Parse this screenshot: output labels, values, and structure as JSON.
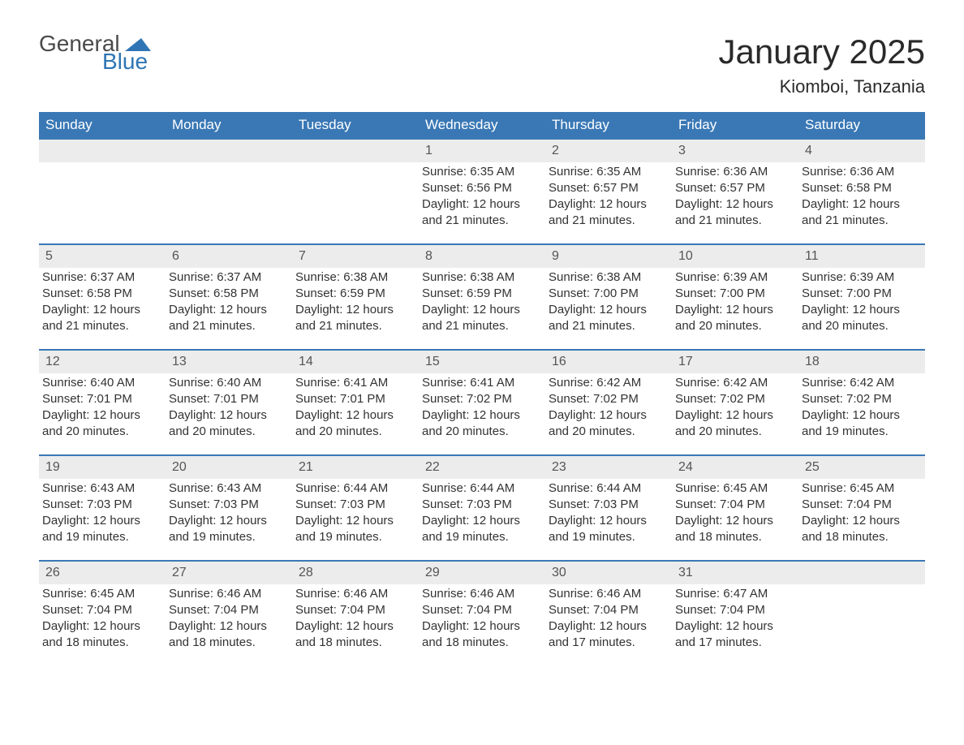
{
  "logo": {
    "text_general": "General",
    "text_blue": "Blue",
    "flag_color": "#2f75b5"
  },
  "title": "January 2025",
  "location": "Kiomboi, Tanzania",
  "colors": {
    "header_bg": "#3a78b5",
    "header_text": "#ffffff",
    "divider": "#3a78b5",
    "daynum_bg": "#ececec",
    "body_text": "#333333",
    "background": "#ffffff"
  },
  "typography": {
    "title_fontsize": 42,
    "location_fontsize": 22,
    "weekday_fontsize": 17,
    "body_fontsize": 15,
    "font_family": "Arial"
  },
  "weekdays": [
    "Sunday",
    "Monday",
    "Tuesday",
    "Wednesday",
    "Thursday",
    "Friday",
    "Saturday"
  ],
  "weeks": [
    [
      {
        "day": "",
        "sunrise": "",
        "sunset": "",
        "daylight": ""
      },
      {
        "day": "",
        "sunrise": "",
        "sunset": "",
        "daylight": ""
      },
      {
        "day": "",
        "sunrise": "",
        "sunset": "",
        "daylight": ""
      },
      {
        "day": "1",
        "sunrise": "Sunrise: 6:35 AM",
        "sunset": "Sunset: 6:56 PM",
        "daylight": "Daylight: 12 hours and 21 minutes."
      },
      {
        "day": "2",
        "sunrise": "Sunrise: 6:35 AM",
        "sunset": "Sunset: 6:57 PM",
        "daylight": "Daylight: 12 hours and 21 minutes."
      },
      {
        "day": "3",
        "sunrise": "Sunrise: 6:36 AM",
        "sunset": "Sunset: 6:57 PM",
        "daylight": "Daylight: 12 hours and 21 minutes."
      },
      {
        "day": "4",
        "sunrise": "Sunrise: 6:36 AM",
        "sunset": "Sunset: 6:58 PM",
        "daylight": "Daylight: 12 hours and 21 minutes."
      }
    ],
    [
      {
        "day": "5",
        "sunrise": "Sunrise: 6:37 AM",
        "sunset": "Sunset: 6:58 PM",
        "daylight": "Daylight: 12 hours and 21 minutes."
      },
      {
        "day": "6",
        "sunrise": "Sunrise: 6:37 AM",
        "sunset": "Sunset: 6:58 PM",
        "daylight": "Daylight: 12 hours and 21 minutes."
      },
      {
        "day": "7",
        "sunrise": "Sunrise: 6:38 AM",
        "sunset": "Sunset: 6:59 PM",
        "daylight": "Daylight: 12 hours and 21 minutes."
      },
      {
        "day": "8",
        "sunrise": "Sunrise: 6:38 AM",
        "sunset": "Sunset: 6:59 PM",
        "daylight": "Daylight: 12 hours and 21 minutes."
      },
      {
        "day": "9",
        "sunrise": "Sunrise: 6:38 AM",
        "sunset": "Sunset: 7:00 PM",
        "daylight": "Daylight: 12 hours and 21 minutes."
      },
      {
        "day": "10",
        "sunrise": "Sunrise: 6:39 AM",
        "sunset": "Sunset: 7:00 PM",
        "daylight": "Daylight: 12 hours and 20 minutes."
      },
      {
        "day": "11",
        "sunrise": "Sunrise: 6:39 AM",
        "sunset": "Sunset: 7:00 PM",
        "daylight": "Daylight: 12 hours and 20 minutes."
      }
    ],
    [
      {
        "day": "12",
        "sunrise": "Sunrise: 6:40 AM",
        "sunset": "Sunset: 7:01 PM",
        "daylight": "Daylight: 12 hours and 20 minutes."
      },
      {
        "day": "13",
        "sunrise": "Sunrise: 6:40 AM",
        "sunset": "Sunset: 7:01 PM",
        "daylight": "Daylight: 12 hours and 20 minutes."
      },
      {
        "day": "14",
        "sunrise": "Sunrise: 6:41 AM",
        "sunset": "Sunset: 7:01 PM",
        "daylight": "Daylight: 12 hours and 20 minutes."
      },
      {
        "day": "15",
        "sunrise": "Sunrise: 6:41 AM",
        "sunset": "Sunset: 7:02 PM",
        "daylight": "Daylight: 12 hours and 20 minutes."
      },
      {
        "day": "16",
        "sunrise": "Sunrise: 6:42 AM",
        "sunset": "Sunset: 7:02 PM",
        "daylight": "Daylight: 12 hours and 20 minutes."
      },
      {
        "day": "17",
        "sunrise": "Sunrise: 6:42 AM",
        "sunset": "Sunset: 7:02 PM",
        "daylight": "Daylight: 12 hours and 20 minutes."
      },
      {
        "day": "18",
        "sunrise": "Sunrise: 6:42 AM",
        "sunset": "Sunset: 7:02 PM",
        "daylight": "Daylight: 12 hours and 19 minutes."
      }
    ],
    [
      {
        "day": "19",
        "sunrise": "Sunrise: 6:43 AM",
        "sunset": "Sunset: 7:03 PM",
        "daylight": "Daylight: 12 hours and 19 minutes."
      },
      {
        "day": "20",
        "sunrise": "Sunrise: 6:43 AM",
        "sunset": "Sunset: 7:03 PM",
        "daylight": "Daylight: 12 hours and 19 minutes."
      },
      {
        "day": "21",
        "sunrise": "Sunrise: 6:44 AM",
        "sunset": "Sunset: 7:03 PM",
        "daylight": "Daylight: 12 hours and 19 minutes."
      },
      {
        "day": "22",
        "sunrise": "Sunrise: 6:44 AM",
        "sunset": "Sunset: 7:03 PM",
        "daylight": "Daylight: 12 hours and 19 minutes."
      },
      {
        "day": "23",
        "sunrise": "Sunrise: 6:44 AM",
        "sunset": "Sunset: 7:03 PM",
        "daylight": "Daylight: 12 hours and 19 minutes."
      },
      {
        "day": "24",
        "sunrise": "Sunrise: 6:45 AM",
        "sunset": "Sunset: 7:04 PM",
        "daylight": "Daylight: 12 hours and 18 minutes."
      },
      {
        "day": "25",
        "sunrise": "Sunrise: 6:45 AM",
        "sunset": "Sunset: 7:04 PM",
        "daylight": "Daylight: 12 hours and 18 minutes."
      }
    ],
    [
      {
        "day": "26",
        "sunrise": "Sunrise: 6:45 AM",
        "sunset": "Sunset: 7:04 PM",
        "daylight": "Daylight: 12 hours and 18 minutes."
      },
      {
        "day": "27",
        "sunrise": "Sunrise: 6:46 AM",
        "sunset": "Sunset: 7:04 PM",
        "daylight": "Daylight: 12 hours and 18 minutes."
      },
      {
        "day": "28",
        "sunrise": "Sunrise: 6:46 AM",
        "sunset": "Sunset: 7:04 PM",
        "daylight": "Daylight: 12 hours and 18 minutes."
      },
      {
        "day": "29",
        "sunrise": "Sunrise: 6:46 AM",
        "sunset": "Sunset: 7:04 PM",
        "daylight": "Daylight: 12 hours and 18 minutes."
      },
      {
        "day": "30",
        "sunrise": "Sunrise: 6:46 AM",
        "sunset": "Sunset: 7:04 PM",
        "daylight": "Daylight: 12 hours and 17 minutes."
      },
      {
        "day": "31",
        "sunrise": "Sunrise: 6:47 AM",
        "sunset": "Sunset: 7:04 PM",
        "daylight": "Daylight: 12 hours and 17 minutes."
      },
      {
        "day": "",
        "sunrise": "",
        "sunset": "",
        "daylight": ""
      }
    ]
  ]
}
